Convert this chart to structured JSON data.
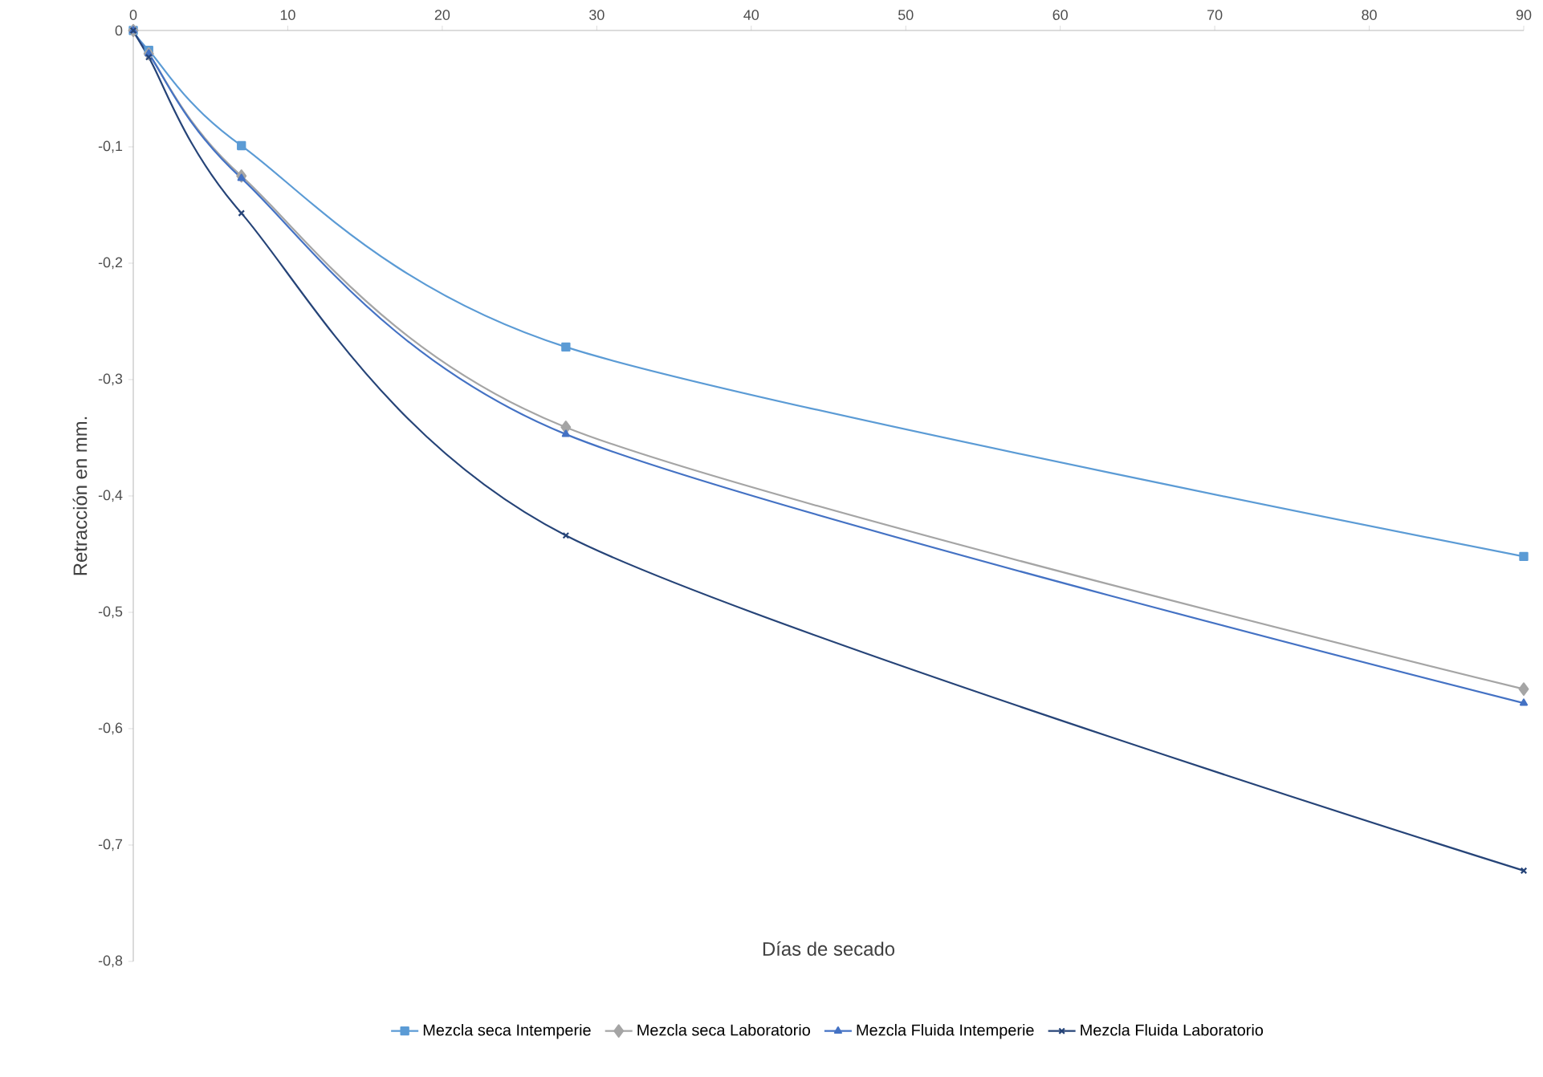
{
  "chart_data": {
    "type": "line",
    "xlabel": "Días de secado",
    "ylabel": "Retracción en mm.",
    "xlim": [
      0,
      90
    ],
    "ylim": [
      -0.8,
      0
    ],
    "xticks": [
      0,
      10,
      20,
      30,
      40,
      50,
      60,
      70,
      80,
      90
    ],
    "yticks": [
      {
        "value": -0.8,
        "label": "-0,8"
      },
      {
        "value": -0.7,
        "label": "-0,7"
      },
      {
        "value": -0.6,
        "label": "-0,6"
      },
      {
        "value": -0.5,
        "label": "-0,5"
      },
      {
        "value": -0.4,
        "label": "-0,4"
      },
      {
        "value": -0.3,
        "label": "-0,3"
      },
      {
        "value": -0.2,
        "label": "-0,2"
      },
      {
        "value": -0.1,
        "label": "-0,1"
      },
      0
    ],
    "x": [
      0,
      1,
      7,
      28,
      90
    ],
    "grid": false,
    "legend": "bottom",
    "line_style": "solid",
    "series": [
      {
        "name": "Mezcla seca Intemperie",
        "color": "#5b9bd5",
        "marker": "square",
        "values": [
          0,
          -0.017,
          -0.099,
          -0.272,
          -0.452
        ]
      },
      {
        "name": "Mezcla seca Laboratorio",
        "color": "#a5a5a5",
        "marker": "diamond",
        "values": [
          0,
          -0.02,
          -0.125,
          -0.341,
          -0.566
        ]
      },
      {
        "name": "Mezcla Fluida Intemperie",
        "color": "#4472c4",
        "marker": "triangle",
        "values": [
          0,
          -0.02,
          -0.127,
          -0.347,
          -0.578
        ]
      },
      {
        "name": "Mezcla Fluida Laboratorio",
        "color": "#264478",
        "marker": "cross",
        "values": [
          0,
          -0.023,
          -0.157,
          -0.434,
          -0.722
        ]
      }
    ]
  }
}
